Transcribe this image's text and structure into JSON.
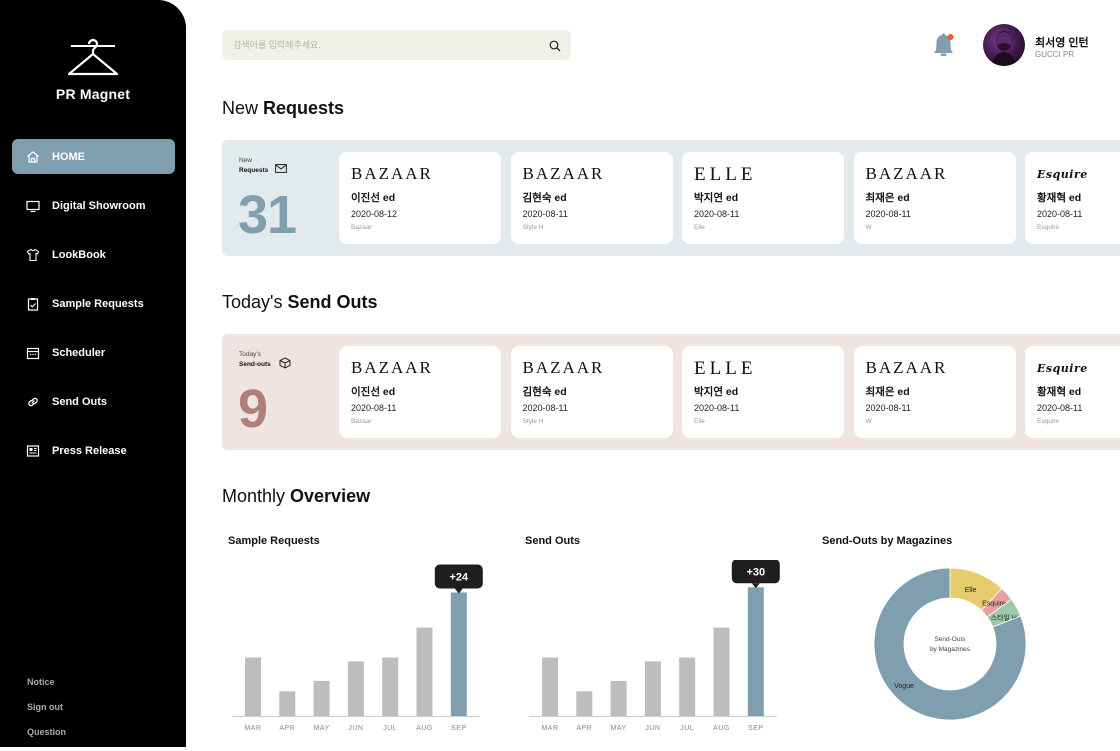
{
  "sidebar": {
    "logo_text": "PR Magnet",
    "items": [
      {
        "label": "HOME",
        "icon": "home-icon",
        "active": true
      },
      {
        "label": "Digital Showroom",
        "icon": "monitor-icon",
        "active": false
      },
      {
        "label": "LookBook",
        "icon": "shirt-icon",
        "active": false
      },
      {
        "label": "Sample Requests",
        "icon": "clipboard-icon",
        "active": false
      },
      {
        "label": "Scheduler",
        "icon": "calendar-icon",
        "active": false
      },
      {
        "label": "Send Outs",
        "icon": "link-icon",
        "active": false
      },
      {
        "label": "Press Release",
        "icon": "newspaper-icon",
        "active": false
      }
    ],
    "bottom": [
      "Notice",
      "Sign out",
      "Question"
    ]
  },
  "header": {
    "search_placeholder": "검색어를 입력해주세요.",
    "user_name": "최서영 인턴",
    "user_role": "GUCCI PR",
    "notification_dot_color": "#f05a28"
  },
  "new_requests": {
    "title_light": "New ",
    "title_bold": "Requests",
    "label_top": "New",
    "label_bottom": "Requests",
    "count": "31",
    "count_color": "#7f9fae",
    "cards": [
      {
        "brand": "BAZAAR",
        "brand_style": "bazaar",
        "name": "이진선 ed",
        "date": "2020-08-12",
        "mag": "Bazaar"
      },
      {
        "brand": "BAZAAR",
        "brand_style": "bazaar",
        "name": "김현숙 ed",
        "date": "2020-08-11",
        "mag": "Style H"
      },
      {
        "brand": "ELLE",
        "brand_style": "elle",
        "name": "박지연 ed",
        "date": "2020-08-11",
        "mag": "Elle"
      },
      {
        "brand": "BAZAAR",
        "brand_style": "bazaar",
        "name": "최재은 ed",
        "date": "2020-08-11",
        "mag": "W"
      },
      {
        "brand": "Esquire",
        "brand_style": "esq",
        "name": "황재혁 ed",
        "date": "2020-08-11",
        "mag": "Esquire"
      }
    ]
  },
  "send_outs": {
    "title_light": "Today's ",
    "title_bold": "Send Outs",
    "label_top": "Today's",
    "label_bottom": "Send-outs",
    "count": "9",
    "count_color": "#b07f7a",
    "cards": [
      {
        "brand": "BAZAAR",
        "brand_style": "bazaar",
        "name": "이진선 ed",
        "date": "2020-08-11",
        "mag": "Bazaar"
      },
      {
        "brand": "BAZAAR",
        "brand_style": "bazaar",
        "name": "김현숙 ed",
        "date": "2020-08-11",
        "mag": "Style H"
      },
      {
        "brand": "ELLE",
        "brand_style": "elle",
        "name": "박지연 ed",
        "date": "2020-08-11",
        "mag": "Elle"
      },
      {
        "brand": "BAZAAR",
        "brand_style": "bazaar",
        "name": "최재은 ed",
        "date": "2020-08-11",
        "mag": "W"
      },
      {
        "brand": "Esquire",
        "brand_style": "esq",
        "name": "황재혁 ed",
        "date": "2020-08-11",
        "mag": "Esquire"
      }
    ]
  },
  "overview": {
    "title_light": "Monthly ",
    "title_bold": "Overview"
  },
  "chart_data": [
    {
      "type": "bar",
      "title": "Sample Requests",
      "categories": [
        "MAR",
        "APR",
        "MAY",
        "JUN",
        "JUL",
        "AUG",
        "SEP"
      ],
      "values": [
        45,
        19,
        27,
        42,
        45,
        68,
        95
      ],
      "ylim": [
        0,
        100
      ],
      "highlight_index": 6,
      "highlight_label": "+24",
      "bar_color": "#bdbdbd",
      "highlight_color": "#7f9fae"
    },
    {
      "type": "bar",
      "title": "Send Outs",
      "categories": [
        "MAR",
        "APR",
        "MAY",
        "JUN",
        "JUL",
        "AUG",
        "SEP"
      ],
      "values": [
        45,
        19,
        27,
        42,
        45,
        68,
        99
      ],
      "ylim": [
        0,
        100
      ],
      "highlight_index": 6,
      "highlight_label": "+30",
      "bar_color": "#bdbdbd",
      "highlight_color": "#7f9fae"
    },
    {
      "type": "pie",
      "title": "Send-Outs by Magazines",
      "center_label": [
        "Send-Outs",
        "by Magazines"
      ],
      "slices": [
        {
          "label": "Elle",
          "value": 12,
          "color": "#e6cc6e"
        },
        {
          "label": "Esquire",
          "value": 3,
          "color": "#e8a0a0"
        },
        {
          "label": "스타일 H",
          "value": 4,
          "color": "#9dc9a6"
        },
        {
          "label": "Vogue",
          "value": 81,
          "color": "#7f9fae"
        }
      ]
    }
  ]
}
